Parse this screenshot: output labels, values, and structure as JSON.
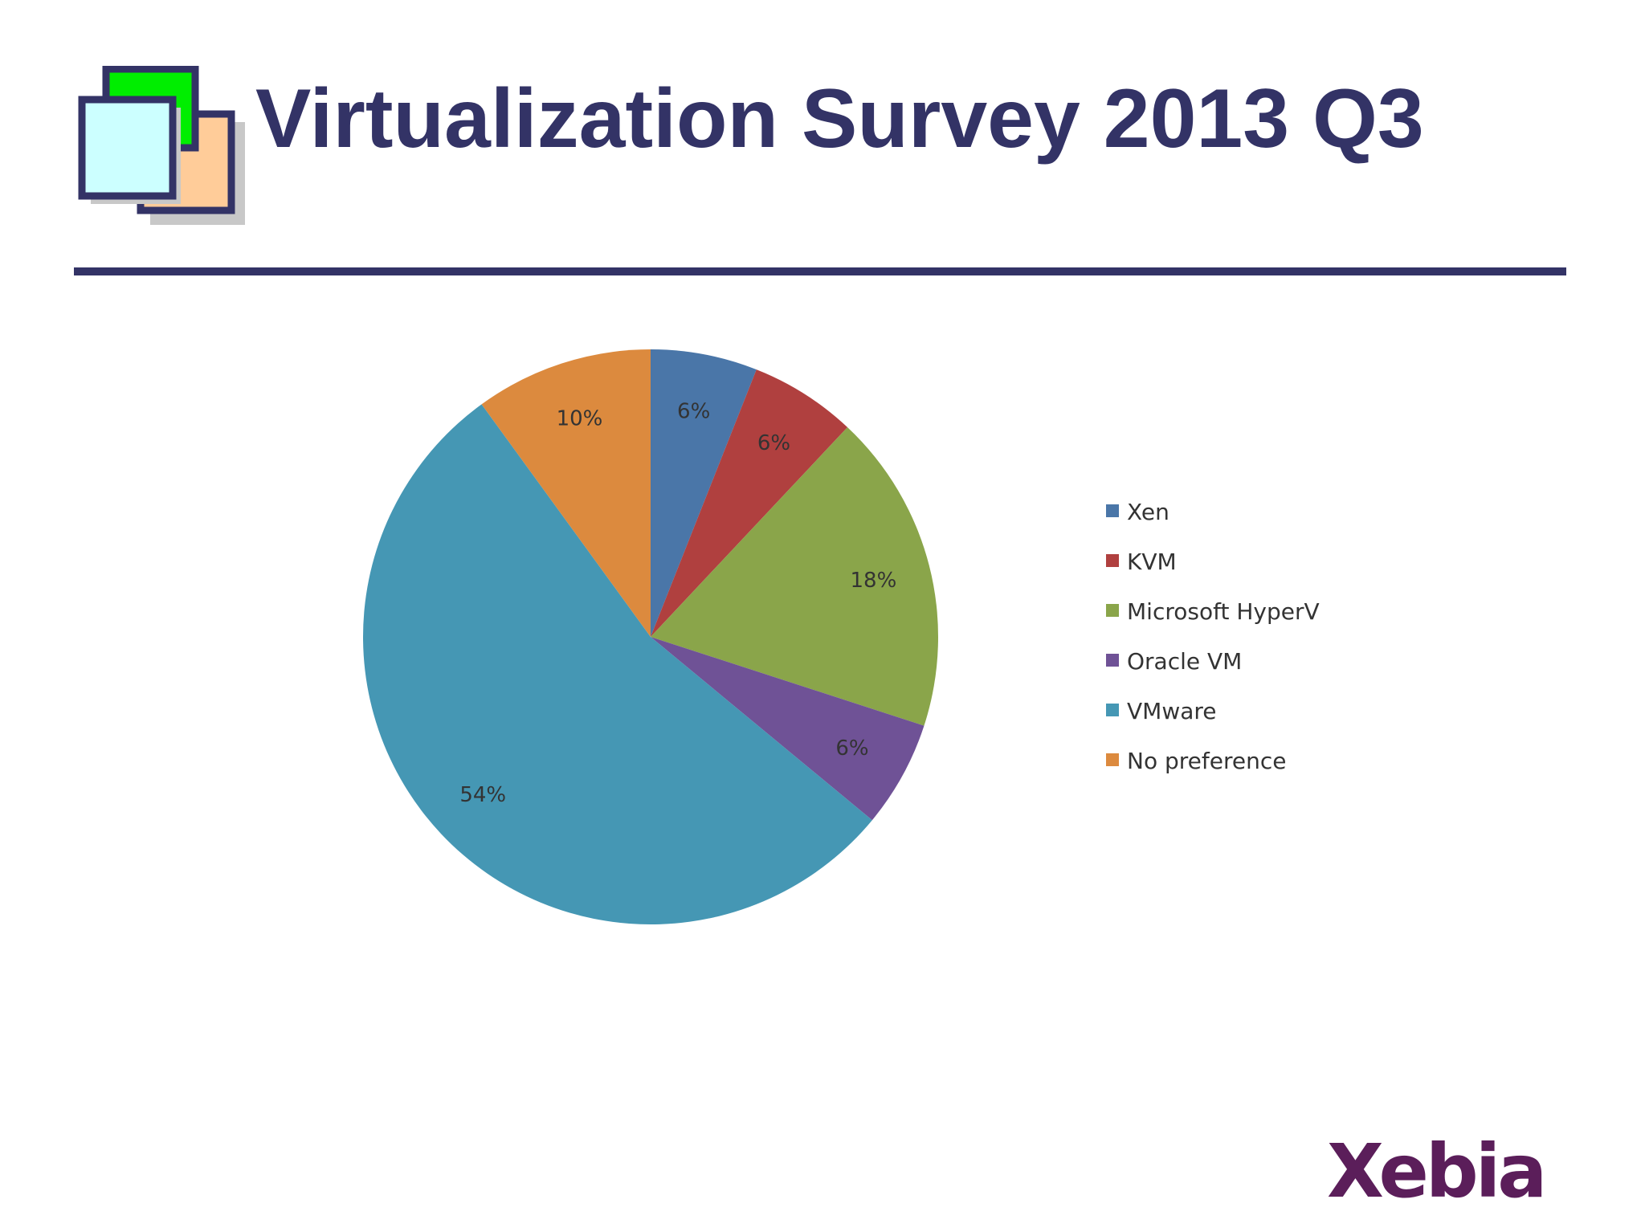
{
  "slide": {
    "title": "Virtualization Survey 2013 Q3",
    "accent_color": "#333366",
    "icon": "stacked-windows-icon",
    "logo_text": "Xebia",
    "logo_color": "#5b1e5a"
  },
  "chart_data": {
    "type": "pie",
    "title": "",
    "legend_position": "right",
    "start_angle": "top (12 o'clock), clockwise",
    "slices": [
      {
        "label": "Xen",
        "value": 6,
        "data_label": "6%",
        "color": "#4a76a8"
      },
      {
        "label": "KVM",
        "value": 6,
        "data_label": "6%",
        "color": "#b0403f"
      },
      {
        "label": "Microsoft HyperV",
        "value": 18,
        "data_label": "18%",
        "color": "#8aa54a"
      },
      {
        "label": "Oracle VM",
        "value": 6,
        "data_label": "6%",
        "color": "#6f5296"
      },
      {
        "label": "VMware",
        "value": 54,
        "data_label": "54%",
        "color": "#4597b4"
      },
      {
        "label": "No preference",
        "value": 10,
        "data_label": "10%",
        "color": "#dc8a3e"
      }
    ]
  }
}
